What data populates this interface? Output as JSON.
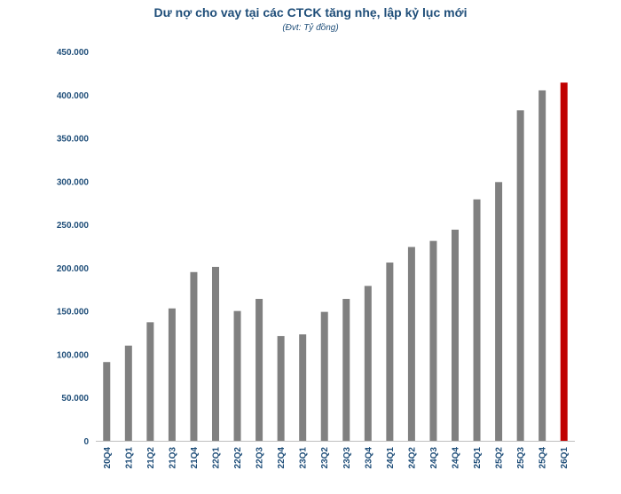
{
  "chart_data": {
    "type": "bar",
    "title": "Dư nợ cho vay tại các CTCK tăng nhẹ, lập kỷ lục mới",
    "subtitle": "(Đvt: Tỷ đồng)",
    "xlabel": "",
    "ylabel": "",
    "ylim": [
      0,
      450000
    ],
    "yticks": [
      "0",
      "50.000",
      "100.000",
      "150.000",
      "200.000",
      "250.000",
      "300.000",
      "350.000",
      "400.000",
      "450.000"
    ],
    "grid": false,
    "categories": [
      "20Q4",
      "21Q1",
      "21Q2",
      "21Q3",
      "21Q4",
      "22Q1",
      "22Q2",
      "22Q3",
      "22Q4",
      "23Q1",
      "23Q2",
      "23Q3",
      "23Q4",
      "24Q1",
      "24Q2",
      "24Q3",
      "24Q4",
      "25Q1",
      "25Q2",
      "25Q3",
      "25Q4",
      "26Q1"
    ],
    "values": [
      91000,
      110000,
      137000,
      153000,
      195000,
      201000,
      150000,
      164000,
      121000,
      123000,
      149000,
      164000,
      179000,
      206000,
      224000,
      231000,
      244000,
      279000,
      299000,
      382000,
      405000,
      414000
    ],
    "colors": {
      "bar": "#808080",
      "highlight": "#c00000",
      "axis": "#1f4e79"
    },
    "highlight_index": 21
  }
}
